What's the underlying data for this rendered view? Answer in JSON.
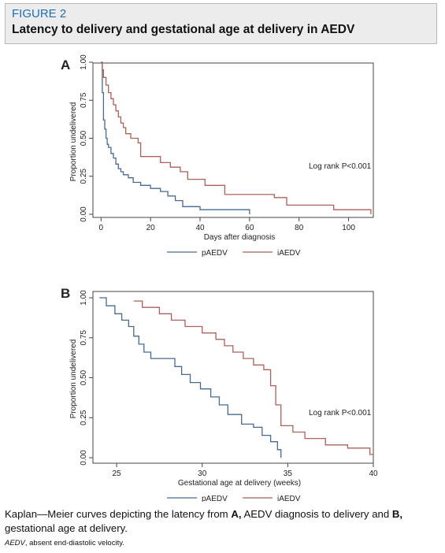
{
  "figure": {
    "label": "FIGURE 2",
    "title": "Latency to delivery and gestational age at delivery in AEDV"
  },
  "chart_data": [
    {
      "type": "line",
      "panel": "A",
      "xlabel": "Days after diagnosis",
      "ylabel": "Proportion undelivered",
      "xlim": [
        -2,
        110
      ],
      "ylim": [
        0,
        1
      ],
      "xticks": [
        "0",
        "20",
        "40",
        "60",
        "80",
        "100"
      ],
      "yticks": [
        "0.00",
        "0.25",
        "0.50",
        "0.75",
        "1.00"
      ],
      "annotation": "Log rank P<0.001",
      "grid": false,
      "legend": "bottom",
      "series": [
        {
          "name": "pAEDV",
          "color": "#4a6a8c",
          "x": [
            0,
            0.5,
            1,
            1.5,
            2,
            2.5,
            3,
            4,
            5,
            6,
            7,
            8,
            9,
            11,
            13,
            16,
            20,
            24,
            27,
            30,
            33,
            40,
            60
          ],
          "y": [
            1.0,
            0.8,
            0.62,
            0.56,
            0.5,
            0.46,
            0.44,
            0.4,
            0.37,
            0.33,
            0.3,
            0.28,
            0.26,
            0.24,
            0.21,
            0.19,
            0.17,
            0.15,
            0.12,
            0.09,
            0.05,
            0.03,
            0.0
          ]
        },
        {
          "name": "iAEDV",
          "color": "#a8625c",
          "x": [
            0,
            0.5,
            1,
            2,
            3,
            4,
            5,
            6,
            7,
            8,
            9,
            10,
            12,
            15,
            16,
            24,
            28,
            32,
            35,
            42,
            50,
            70,
            75,
            94,
            109
          ],
          "y": [
            1.0,
            0.95,
            0.9,
            0.85,
            0.8,
            0.76,
            0.72,
            0.68,
            0.64,
            0.6,
            0.57,
            0.53,
            0.5,
            0.47,
            0.38,
            0.34,
            0.31,
            0.28,
            0.23,
            0.19,
            0.13,
            0.11,
            0.06,
            0.03,
            0.0
          ]
        }
      ]
    },
    {
      "type": "line",
      "panel": "B",
      "xlabel": "Gestational age at delivery (weeks)",
      "ylabel": "Proportion undelivered",
      "xlim": [
        23.8,
        40
      ],
      "ylim": [
        0,
        1
      ],
      "xticks": [
        "25",
        "30",
        "35",
        "40"
      ],
      "yticks": [
        "0.00",
        "0.25",
        "0.50",
        "0.75",
        "1.00"
      ],
      "annotation": "Log rank P<0.001",
      "grid": false,
      "legend": "bottom",
      "series": [
        {
          "name": "pAEDV",
          "color": "#4a6a8c",
          "x": [
            24,
            24.4,
            24.9,
            25.3,
            25.7,
            26.0,
            26.3,
            26.6,
            27.0,
            27.6,
            28.4,
            28.8,
            29.3,
            29.9,
            30.5,
            31.0,
            31.5,
            32.3,
            33.0,
            33.5,
            34.0,
            34.4,
            34.6
          ],
          "y": [
            1.0,
            0.95,
            0.9,
            0.86,
            0.82,
            0.76,
            0.71,
            0.66,
            0.62,
            0.62,
            0.57,
            0.52,
            0.47,
            0.43,
            0.38,
            0.33,
            0.27,
            0.21,
            0.19,
            0.14,
            0.1,
            0.05,
            0.0
          ]
        },
        {
          "name": "iAEDV",
          "color": "#a8625c",
          "x": [
            26.0,
            26.5,
            27.5,
            28.2,
            29.0,
            30.0,
            30.8,
            31.3,
            31.8,
            32.4,
            33.0,
            33.6,
            34.0,
            34.3,
            34.6,
            35.3,
            36.0,
            37.2,
            38.5,
            39.8,
            40
          ],
          "y": [
            0.98,
            0.94,
            0.9,
            0.86,
            0.82,
            0.78,
            0.74,
            0.7,
            0.66,
            0.62,
            0.58,
            0.55,
            0.45,
            0.33,
            0.2,
            0.16,
            0.12,
            0.08,
            0.06,
            0.02,
            0.0
          ]
        }
      ]
    }
  ],
  "caption": {
    "prefix": "Kaplan—Meier curves depicting the latency from ",
    "a": "A,",
    "middle": " AEDV diagnosis to delivery and ",
    "b": "B,",
    "suffix": " gestational age at delivery."
  },
  "footnote": {
    "abbr": "AEDV",
    "text": ", absent end-diastolic velocity."
  }
}
